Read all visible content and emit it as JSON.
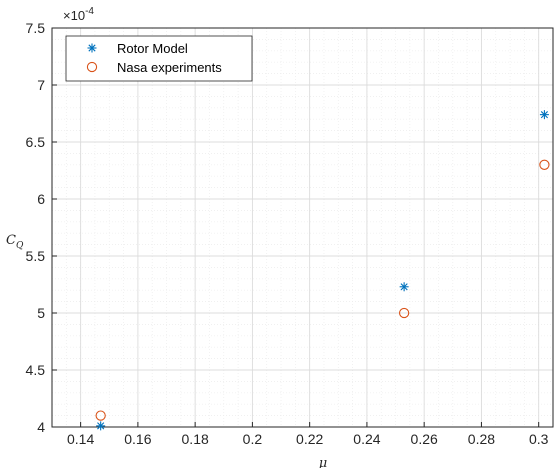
{
  "chart_data": {
    "type": "scatter",
    "title": "",
    "xlabel": "μ",
    "ylabel": "C_Q",
    "ylabel_main": "C",
    "ylabel_sub": "Q",
    "xlim": [
      0.13,
      0.305
    ],
    "ylim": [
      4.0,
      7.5
    ],
    "x_ticks": [
      0.14,
      0.16,
      0.18,
      0.2,
      0.22,
      0.24,
      0.26,
      0.28,
      0.3
    ],
    "x_tick_labels": [
      "0.14",
      "0.16",
      "0.18",
      "0.2",
      "0.22",
      "0.24",
      "0.26",
      "0.28",
      "0.3"
    ],
    "y_ticks": [
      4,
      4.5,
      5,
      5.5,
      6,
      6.5,
      7,
      7.5
    ],
    "y_tick_labels": [
      "4",
      "4.5",
      "5",
      "5.5",
      "6",
      "6.5",
      "7",
      "7.5"
    ],
    "y_multiplier_base": "×10",
    "y_multiplier_exp": "-4",
    "grid": true,
    "minor_grid": true,
    "legend_position": "top-left",
    "series": [
      {
        "name": "Rotor Model",
        "marker": "asterisk",
        "color": "#0072BD",
        "x": [
          0.147,
          0.253,
          0.302
        ],
        "y": [
          4.01,
          5.23,
          6.74
        ]
      },
      {
        "name": "Nasa experiments",
        "marker": "circle",
        "color": "#D95319",
        "x": [
          0.147,
          0.253,
          0.302
        ],
        "y": [
          4.1,
          5.0,
          6.3
        ]
      }
    ]
  }
}
